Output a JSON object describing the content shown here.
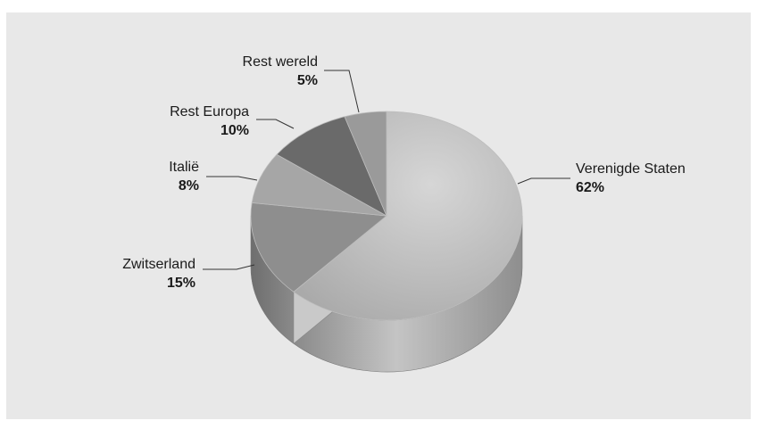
{
  "chart_data": {
    "type": "pie",
    "three_d": true,
    "slices": [
      {
        "label": "Verenigde Staten",
        "value": 62,
        "value_label": "62%",
        "color": "#b4b4b4"
      },
      {
        "label": "Zwitserland",
        "value": 15,
        "value_label": "15%",
        "color": "#8e8e8e"
      },
      {
        "label": "Italië",
        "value": 8,
        "value_label": "8%",
        "color": "#a6a6a6"
      },
      {
        "label": "Rest Europa",
        "value": 10,
        "value_label": "10%",
        "color": "#6a6a6a"
      },
      {
        "label": "Rest wereld",
        "value": 5,
        "value_label": "5%",
        "color": "#9a9a9a"
      }
    ],
    "legend": "none",
    "labels": "outside-with-leader-lines"
  }
}
